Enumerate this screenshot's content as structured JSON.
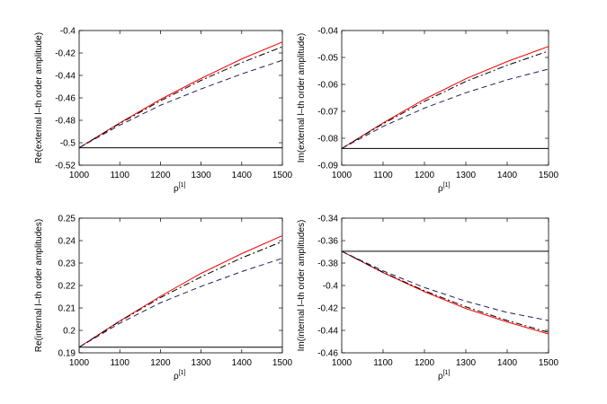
{
  "chart_data": [
    {
      "type": "line",
      "ylabel": "Re(external l–th order amplitude)",
      "xlabel": {
        "base": "ρ",
        "sup": "[1]"
      },
      "xlim": [
        1000,
        1500
      ],
      "ylim": [
        -0.52,
        -0.4
      ],
      "xticks": [
        "1000",
        "1100",
        "1200",
        "1300",
        "1400",
        "1500"
      ],
      "yticks": [
        "-0.52",
        "-0.5",
        "-0.48",
        "-0.46",
        "-0.44",
        "-0.42",
        "-0.4"
      ],
      "series": [
        {
          "color": "#ff0000",
          "style": "solid",
          "x": [
            1000,
            1100,
            1200,
            1300,
            1400,
            1500
          ],
          "y": [
            -0.5045,
            -0.4823,
            -0.4614,
            -0.4427,
            -0.4253,
            -0.4102
          ]
        },
        {
          "color": "#000000",
          "style": "dashdot",
          "x": [
            1000,
            1100,
            1200,
            1300,
            1400,
            1500
          ],
          "y": [
            -0.5045,
            -0.4828,
            -0.4627,
            -0.4444,
            -0.4286,
            -0.4145
          ]
        },
        {
          "color": "#1f1f5a",
          "style": "dashed",
          "x": [
            1000,
            1100,
            1200,
            1300,
            1400,
            1500
          ],
          "y": [
            -0.5045,
            -0.4843,
            -0.4666,
            -0.4521,
            -0.4387,
            -0.4265
          ]
        },
        {
          "color": "#000000",
          "style": "solid",
          "x": [
            1000,
            1500
          ],
          "y": [
            -0.5045,
            -0.5045
          ]
        }
      ]
    },
    {
      "type": "line",
      "ylabel": "Im(external l–th order amplitude)",
      "xlabel": {
        "base": "ρ",
        "sup": "[1]"
      },
      "xlim": [
        1000,
        1500
      ],
      "ylim": [
        -0.09,
        -0.04
      ],
      "xticks": [
        "1000",
        "1100",
        "1200",
        "1300",
        "1400",
        "1500"
      ],
      "yticks": [
        "-0.09",
        "-0.08",
        "-0.07",
        "-0.06",
        "-0.05",
        "-0.04"
      ],
      "series": [
        {
          "color": "#ff0000",
          "style": "solid",
          "x": [
            1000,
            1100,
            1200,
            1300,
            1400,
            1500
          ],
          "y": [
            -0.0838,
            -0.0743,
            -0.0655,
            -0.0579,
            -0.0515,
            -0.0459
          ]
        },
        {
          "color": "#000000",
          "style": "dashdot",
          "x": [
            1000,
            1100,
            1200,
            1300,
            1400,
            1500
          ],
          "y": [
            -0.0838,
            -0.0746,
            -0.0663,
            -0.0589,
            -0.0529,
            -0.0476
          ]
        },
        {
          "color": "#1f1f5a",
          "style": "dashed",
          "x": [
            1000,
            1100,
            1200,
            1300,
            1400,
            1500
          ],
          "y": [
            -0.0838,
            -0.0756,
            -0.0688,
            -0.0631,
            -0.0583,
            -0.0543
          ]
        },
        {
          "color": "#000000",
          "style": "solid",
          "x": [
            1000,
            1500
          ],
          "y": [
            -0.0838,
            -0.0838
          ]
        }
      ]
    },
    {
      "type": "line",
      "ylabel": "Re(internal l–th order amplitudes)",
      "xlabel": {
        "base": "ρ",
        "sup": "[1]"
      },
      "xlim": [
        1000,
        1500
      ],
      "ylim": [
        0.19,
        0.25
      ],
      "xticks": [
        "1000",
        "1100",
        "1200",
        "1300",
        "1400",
        "1500"
      ],
      "yticks": [
        "0.19",
        "0.2",
        "0.21",
        "0.22",
        "0.23",
        "0.24",
        "0.25"
      ],
      "series": [
        {
          "color": "#ff0000",
          "style": "solid",
          "x": [
            1000,
            1100,
            1200,
            1300,
            1400,
            1500
          ],
          "y": [
            0.1925,
            0.2042,
            0.2152,
            0.2254,
            0.2342,
            0.2422
          ]
        },
        {
          "color": "#000000",
          "style": "dashdot",
          "x": [
            1000,
            1100,
            1200,
            1300,
            1400,
            1500
          ],
          "y": [
            0.1925,
            0.204,
            0.2146,
            0.2238,
            0.2323,
            0.2396
          ]
        },
        {
          "color": "#1f1f5a",
          "style": "dashed",
          "x": [
            1000,
            1100,
            1200,
            1300,
            1400,
            1500
          ],
          "y": [
            0.1925,
            0.2032,
            0.2123,
            0.2196,
            0.2262,
            0.2321
          ]
        },
        {
          "color": "#000000",
          "style": "solid",
          "x": [
            1000,
            1500
          ],
          "y": [
            0.1925,
            0.1925
          ]
        }
      ]
    },
    {
      "type": "line",
      "ylabel": "Im(internal l–th order amplitudes)",
      "xlabel": {
        "base": "ρ",
        "sup": "[1]"
      },
      "xlim": [
        1000,
        1500
      ],
      "ylim": [
        -0.46,
        -0.34
      ],
      "xticks": [
        "1000",
        "1100",
        "1200",
        "1300",
        "1400",
        "1500"
      ],
      "yticks": [
        "-0.46",
        "-0.44",
        "-0.42",
        "-0.4",
        "-0.38",
        "-0.36",
        "-0.34"
      ],
      "series": [
        {
          "color": "#ff0000",
          "style": "solid",
          "x": [
            1000,
            1100,
            1200,
            1300,
            1400,
            1500
          ],
          "y": [
            -0.3695,
            -0.3885,
            -0.4055,
            -0.4205,
            -0.4325,
            -0.4432
          ]
        },
        {
          "color": "#000000",
          "style": "dashdot",
          "x": [
            1000,
            1100,
            1200,
            1300,
            1400,
            1500
          ],
          "y": [
            -0.3695,
            -0.3882,
            -0.4047,
            -0.419,
            -0.4312,
            -0.4418
          ]
        },
        {
          "color": "#1f1f5a",
          "style": "dashed",
          "x": [
            1000,
            1100,
            1200,
            1300,
            1400,
            1500
          ],
          "y": [
            -0.3695,
            -0.387,
            -0.4018,
            -0.414,
            -0.424,
            -0.4312
          ]
        },
        {
          "color": "#000000",
          "style": "solid",
          "x": [
            1000,
            1500
          ],
          "y": [
            -0.3695,
            -0.3695
          ]
        }
      ]
    }
  ]
}
